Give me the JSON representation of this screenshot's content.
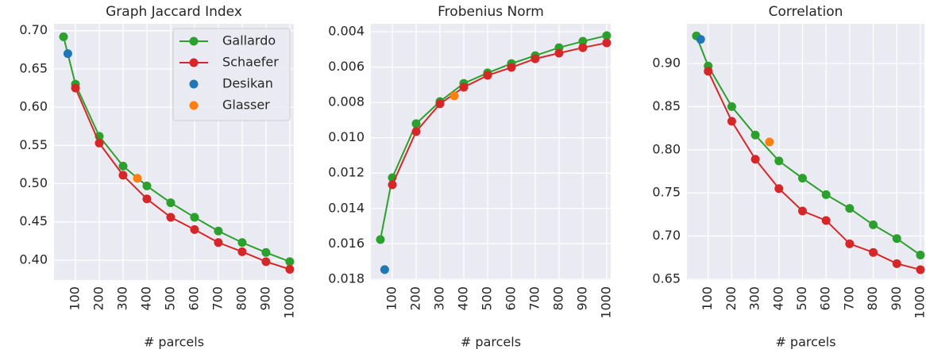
{
  "chart_data": [
    {
      "type": "line",
      "title": "Graph Jaccard Index",
      "xlabel": "# parcels",
      "xlim": [
        10,
        1017
      ],
      "xticks": [
        100,
        200,
        300,
        400,
        500,
        600,
        700,
        800,
        900,
        1000
      ],
      "ylim": [
        0.374,
        0.709
      ],
      "yticks": [
        {
          "value": 0.4,
          "label": "0.40"
        },
        0.45,
        {
          "value": 0.5,
          "label": "0.50"
        },
        0.55,
        {
          "value": 0.6,
          "label": "0.60"
        },
        0.65,
        {
          "value": 0.7,
          "label": "0.70"
        }
      ],
      "grid": true,
      "legend": "upper right",
      "series": [
        {
          "name": "Gallardo",
          "color": "#2ca02c",
          "line": true,
          "x": [
            50,
            100,
            200,
            300,
            400,
            500,
            600,
            700,
            800,
            900,
            1000
          ],
          "values": [
            0.692,
            0.63,
            0.562,
            0.523,
            0.497,
            0.475,
            0.456,
            0.438,
            0.423,
            0.41,
            0.398
          ]
        },
        {
          "name": "Schaefer",
          "color": "#d62728",
          "line": true,
          "x": [
            100,
            200,
            300,
            400,
            500,
            600,
            700,
            800,
            900,
            1000
          ],
          "values": [
            0.625,
            0.553,
            0.511,
            0.48,
            0.456,
            0.44,
            0.423,
            0.411,
            0.398,
            0.388
          ]
        },
        {
          "name": "Desikan",
          "color": "#1f77b4",
          "line": false,
          "x": [
            68
          ],
          "values": [
            0.67
          ]
        },
        {
          "name": "Glasser",
          "color": "#ff7f0e",
          "line": false,
          "x": [
            360
          ],
          "values": [
            0.507
          ]
        }
      ]
    },
    {
      "type": "line",
      "title": "Frobenius Norm",
      "xlabel": "# parcels",
      "xlim": [
        10,
        1017
      ],
      "xticks": [
        100,
        200,
        300,
        400,
        500,
        600,
        700,
        800,
        900,
        1000
      ],
      "ylim": [
        0.01805,
        0.00355
      ],
      "yticks": [
        0.004,
        0.006,
        0.008,
        {
          "value": 0.01,
          "label": "0.010"
        },
        0.012,
        0.014,
        0.016,
        0.018
      ],
      "grid": true,
      "series": [
        {
          "color": "#2ca02c",
          "line": true,
          "x": [
            50,
            100,
            200,
            300,
            400,
            500,
            600,
            700,
            800,
            900,
            1000
          ],
          "values": [
            0.01576,
            0.01226,
            0.0092,
            0.00795,
            0.00692,
            0.00633,
            0.0058,
            0.00535,
            0.0049,
            0.00454,
            0.00422
          ]
        },
        {
          "color": "#d62728",
          "line": true,
          "x": [
            100,
            200,
            300,
            400,
            500,
            600,
            700,
            800,
            900,
            1000
          ],
          "values": [
            0.01266,
            0.00965,
            0.00808,
            0.00714,
            0.00647,
            0.00602,
            0.00553,
            0.00521,
            0.0049,
            0.00463
          ]
        },
        {
          "color": "#1f77b4",
          "line": false,
          "x": [
            68
          ],
          "values": [
            0.01746
          ]
        },
        {
          "color": "#ff7f0e",
          "line": false,
          "x": [
            360
          ],
          "values": [
            0.00763
          ]
        }
      ]
    },
    {
      "type": "line",
      "title": "Correlation",
      "xlabel": "# parcels",
      "xlim": [
        10,
        1017
      ],
      "xticks": [
        100,
        200,
        300,
        400,
        500,
        600,
        700,
        800,
        900,
        1000
      ],
      "ylim": [
        0.649,
        0.946
      ],
      "yticks": [
        0.65,
        {
          "value": 0.7,
          "label": "0.70"
        },
        0.75,
        {
          "value": 0.8,
          "label": "0.80"
        },
        0.85,
        {
          "value": 0.9,
          "label": "0.90"
        }
      ],
      "grid": true,
      "series": [
        {
          "color": "#2ca02c",
          "line": true,
          "x": [
            50,
            100,
            200,
            300,
            400,
            500,
            600,
            700,
            800,
            900,
            1000
          ],
          "values": [
            0.932,
            0.897,
            0.85,
            0.817,
            0.787,
            0.767,
            0.748,
            0.732,
            0.713,
            0.697,
            0.678
          ]
        },
        {
          "color": "#d62728",
          "line": true,
          "x": [
            100,
            200,
            300,
            400,
            500,
            600,
            700,
            800,
            900,
            1000
          ],
          "values": [
            0.891,
            0.833,
            0.789,
            0.755,
            0.729,
            0.718,
            0.691,
            0.681,
            0.668,
            0.661
          ]
        },
        {
          "color": "#1f77b4",
          "line": false,
          "x": [
            68
          ],
          "values": [
            0.928
          ]
        },
        {
          "color": "#ff7f0e",
          "line": false,
          "x": [
            360
          ],
          "values": [
            0.809
          ]
        }
      ]
    }
  ]
}
